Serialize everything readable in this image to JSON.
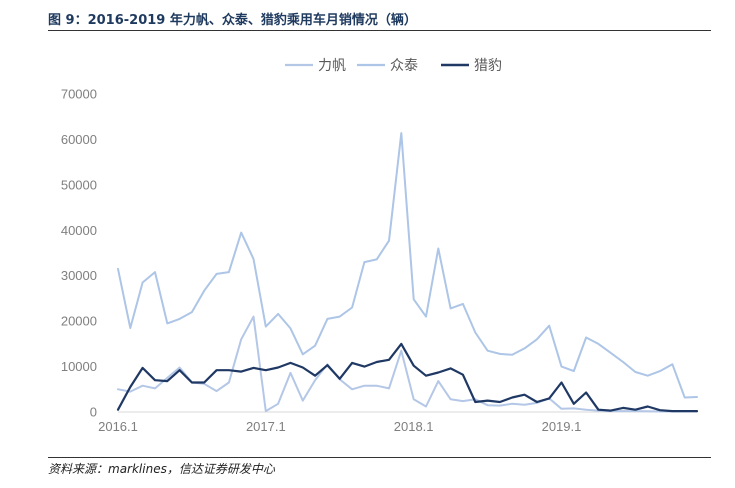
{
  "figure": {
    "title": "图 9：2016-2019 年力帆、众泰、猎豹乘用车月销情况（辆）",
    "source": "资料来源：marklines，信达证券研发中心"
  },
  "chart_data": {
    "type": "line",
    "x": [
      "2016.1",
      "2016.2",
      "2016.3",
      "2016.4",
      "2016.5",
      "2016.6",
      "2016.7",
      "2016.8",
      "2016.9",
      "2016.10",
      "2016.11",
      "2016.12",
      "2017.1",
      "2017.2",
      "2017.3",
      "2017.4",
      "2017.5",
      "2017.6",
      "2017.7",
      "2017.8",
      "2017.9",
      "2017.10",
      "2017.11",
      "2017.12",
      "2018.1",
      "2018.2",
      "2018.3",
      "2018.4",
      "2018.5",
      "2018.6",
      "2018.7",
      "2018.8",
      "2018.9",
      "2018.10",
      "2018.11",
      "2018.12",
      "2019.1",
      "2019.2",
      "2019.3",
      "2019.4",
      "2019.5",
      "2019.6",
      "2019.7",
      "2019.8",
      "2019.9",
      "2019.10",
      "2019.11",
      "2019.12"
    ],
    "x_tick_labels": [
      "2016.1",
      "2017.1",
      "2018.1",
      "2019.1"
    ],
    "ylim": [
      0,
      70000
    ],
    "y_ticks": [
      "0",
      "10000",
      "20000",
      "30000",
      "40000",
      "50000",
      "60000",
      "70000"
    ],
    "grid": false,
    "legend_position": "top",
    "series": [
      {
        "name": "力帆",
        "color": "#b4c7e7",
        "values": [
          5000,
          4500,
          5800,
          5200,
          7500,
          9800,
          6500,
          6200,
          4600,
          6500,
          16000,
          21000,
          200,
          1800,
          8600,
          2500,
          7000,
          10500,
          7200,
          5000,
          5800,
          5800,
          5200,
          13500,
          2800,
          1200,
          6800,
          2800,
          2400,
          2800,
          1500,
          1400,
          1800,
          1600,
          2000,
          3000,
          700,
          800,
          500,
          300,
          200,
          200,
          200,
          150,
          100,
          100,
          100,
          100
        ]
      },
      {
        "name": "众泰",
        "color": "#adc5e6",
        "values": [
          31500,
          18500,
          28500,
          30800,
          19500,
          20500,
          22000,
          26700,
          30400,
          30800,
          39500,
          33700,
          18800,
          21600,
          18400,
          12700,
          14600,
          20500,
          21000,
          23000,
          33000,
          33600,
          37700,
          61400,
          24800,
          21000,
          36000,
          22800,
          23800,
          17500,
          13500,
          12800,
          12600,
          14000,
          16000,
          19000,
          10000,
          9000,
          16400,
          15000,
          13000,
          11000,
          8800,
          8000,
          9000,
          10500,
          3200,
          3300
        ]
      },
      {
        "name": "猎豹",
        "color": "#1f3864",
        "values": [
          500,
          5500,
          9700,
          7000,
          6800,
          9200,
          6500,
          6500,
          9200,
          9200,
          8900,
          9700,
          9200,
          9800,
          10800,
          9800,
          8000,
          10300,
          7300,
          10800,
          10000,
          11000,
          11500,
          15000,
          10200,
          8000,
          8700,
          9600,
          8200,
          2200,
          2500,
          2200,
          3200,
          3800,
          2200,
          3000,
          6500,
          1800,
          4300,
          500,
          300,
          900,
          500,
          1200,
          400,
          200,
          200,
          200
        ]
      }
    ]
  }
}
